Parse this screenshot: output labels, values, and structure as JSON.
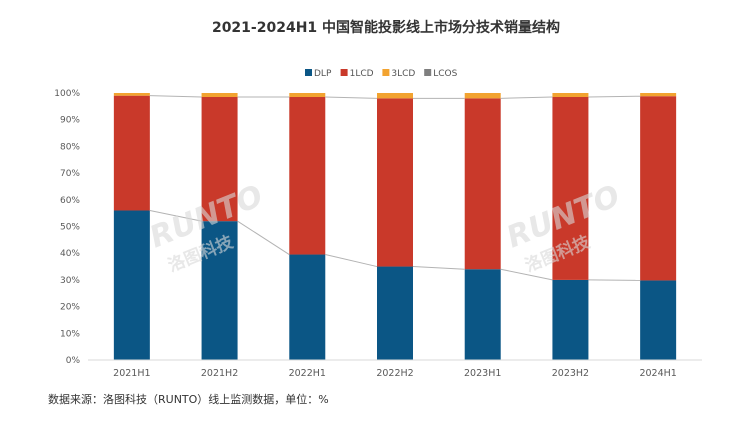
{
  "chart_data": {
    "type": "bar",
    "stacked": true,
    "title": "2021-2024H1 中国智能投影线上市场分技术销量结构",
    "categories": [
      "2021H1",
      "2021H2",
      "2022H1",
      "2022H2",
      "2023H1",
      "2023H2",
      "2024H1"
    ],
    "series": [
      {
        "name": "DLP",
        "color": "#0b5685",
        "values": [
          56,
          52,
          39.5,
          35,
          34,
          30,
          29.8
        ]
      },
      {
        "name": "1LCD",
        "color": "#c9392a",
        "values": [
          43,
          46.5,
          59,
          63,
          64,
          68.5,
          69
        ]
      },
      {
        "name": "3LCD",
        "color": "#f2a330",
        "values": [
          1,
          1.5,
          1.5,
          2,
          2,
          1.5,
          1.2
        ]
      },
      {
        "name": "LCOS",
        "color": "#7f7f7f",
        "values": [
          0,
          0,
          0,
          0,
          0,
          0,
          0
        ]
      }
    ],
    "ylim": [
      0,
      100
    ],
    "yticks": [
      "0%",
      "10%",
      "20%",
      "30%",
      "40%",
      "50%",
      "60%",
      "70%",
      "80%",
      "90%",
      "100%"
    ],
    "legend_position": "top",
    "grid": false,
    "connector_lines": true,
    "source": "数据来源：洛图科技（RUNTO）线上监测数据，单位：%"
  },
  "watermark": {
    "latin": "RUNTO",
    "cjk": "洛图科技"
  }
}
